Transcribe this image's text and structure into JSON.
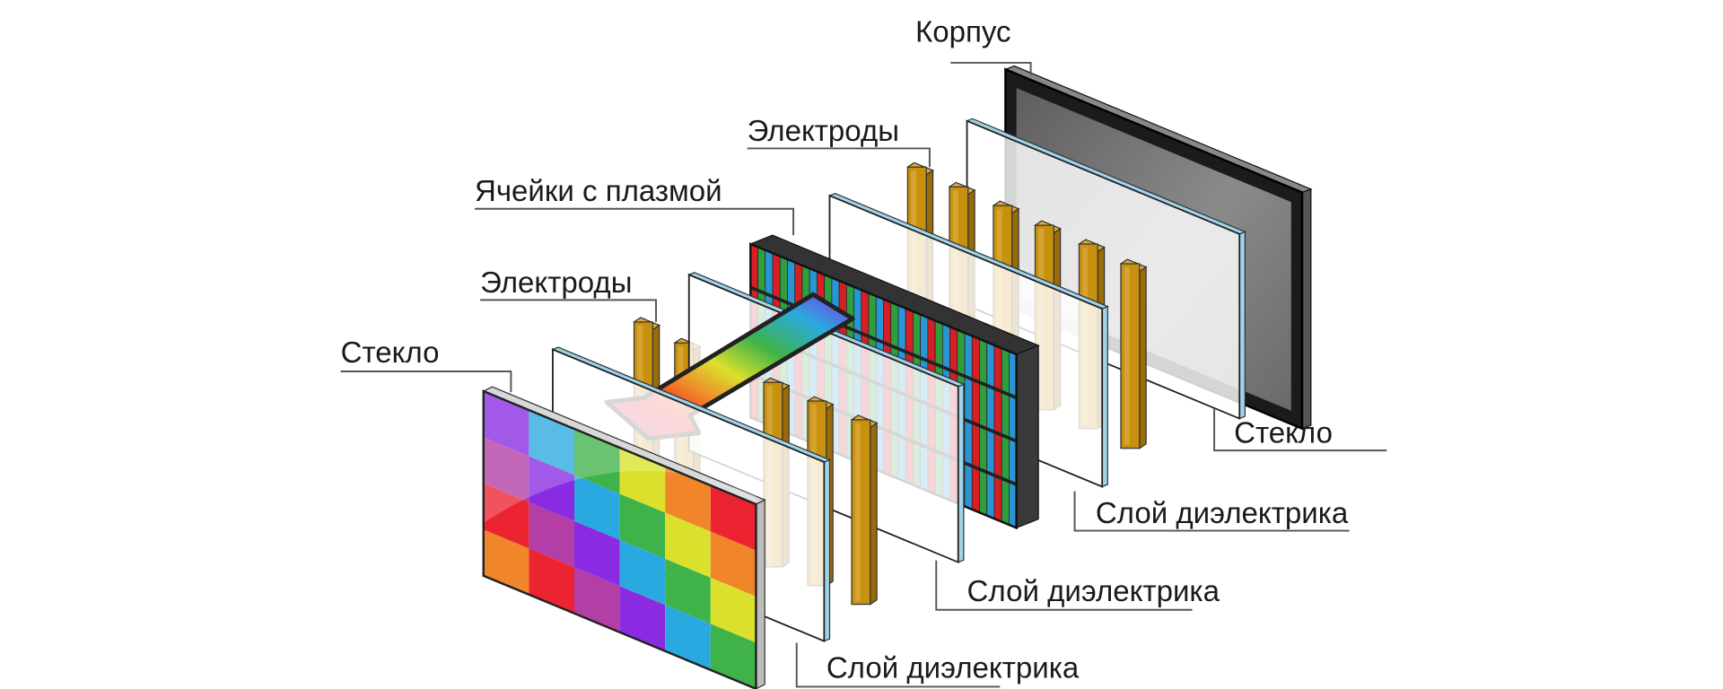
{
  "labels": {
    "case": "Корпус",
    "electrodes_back": "Электроды",
    "plasma_cells": "Ячейки с плазмой",
    "electrodes_front": "Электроды",
    "glass_front": "Стекло",
    "glass_back": "Стекло",
    "dielectric_back": "Слой диэлектрика",
    "dielectric_middle": "Слой диэлектрика",
    "dielectric_front": "Слой диэлектрика"
  },
  "colors": {
    "palette": [
      "#ec2330",
      "#f0852a",
      "#dbe02c",
      "#3fb34a",
      "#2aa9e0",
      "#8a2be2",
      "#b23ea6"
    ],
    "electrode": "#c8900f",
    "electrode_light": "#dcab3f",
    "case_frame": "#1b1b1b",
    "case_screen": "#7d7d7d",
    "glass_edge": "#9fd3ea",
    "cell_red": "#d81e25",
    "cell_green": "#2f9e3c",
    "cell_blue": "#2a95d5"
  }
}
